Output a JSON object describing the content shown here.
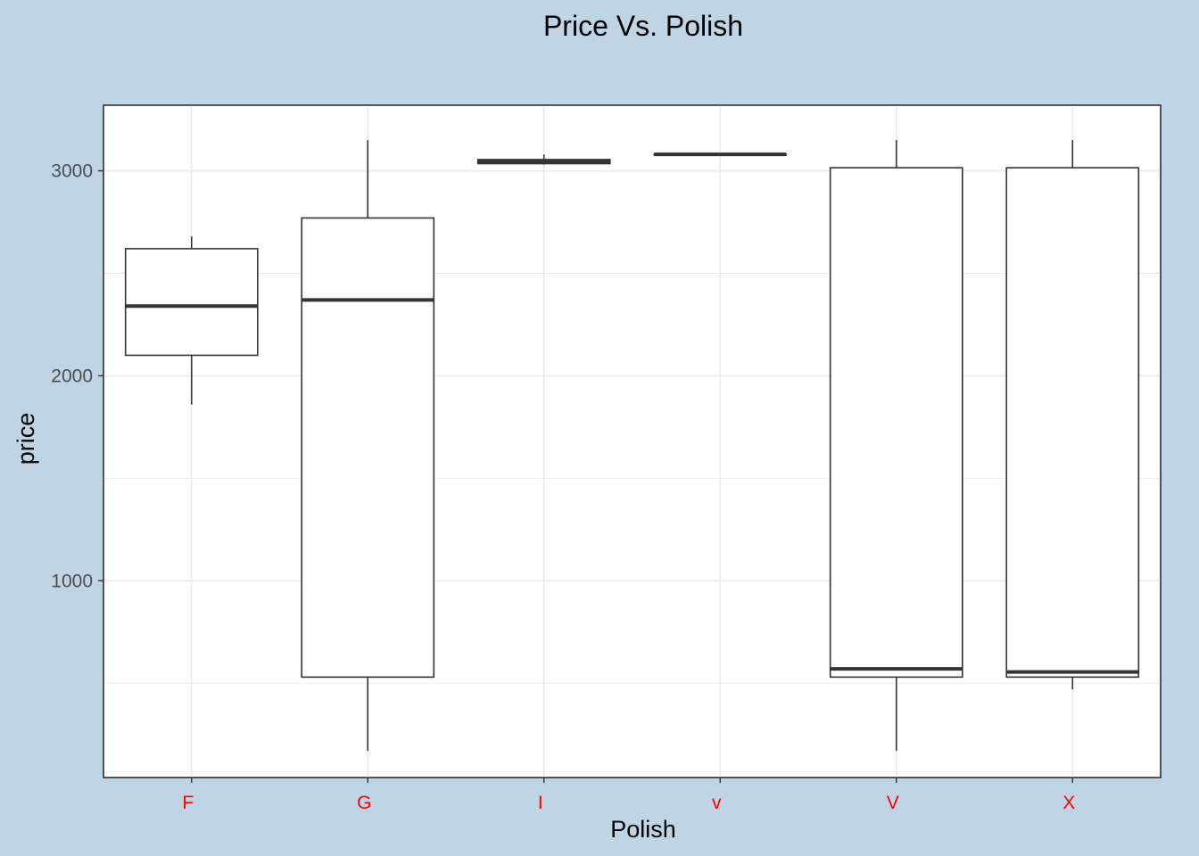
{
  "chart_data": {
    "type": "boxplot",
    "title": "Price Vs. Polish",
    "xlabel": "Polish",
    "ylabel": "price",
    "categories": [
      "F",
      "G",
      "I",
      "v",
      "V",
      "X"
    ],
    "ylim": [
      40,
      3320
    ],
    "yticks": [
      1000,
      2000,
      3000
    ],
    "ytick_labels": [
      "1000",
      "2000",
      "3000"
    ],
    "grid": true,
    "legend": "none",
    "boxes": [
      {
        "category": "F",
        "whisker_low": 1860,
        "q1": 2100,
        "median": 2340,
        "q3": 2620,
        "whisker_high": 2680
      },
      {
        "category": "G",
        "whisker_low": 170,
        "q1": 530,
        "median": 2370,
        "q3": 2770,
        "whisker_high": 3150
      },
      {
        "category": "I",
        "whisker_low": 3030,
        "q1": 3035,
        "median": 3045,
        "q3": 3055,
        "whisker_high": 3080
      },
      {
        "category": "v",
        "whisker_low": 3080,
        "q1": 3080,
        "median": 3080,
        "q3": 3080,
        "whisker_high": 3080
      },
      {
        "category": "V",
        "whisker_low": 170,
        "q1": 530,
        "median": 570,
        "q3": 3015,
        "whisker_high": 3150
      },
      {
        "category": "X",
        "whisker_low": 470,
        "q1": 530,
        "median": 555,
        "q3": 3015,
        "whisker_high": 3150
      }
    ],
    "colors": {
      "panel_background": "#ffffff",
      "plot_background": "#bfd5e5",
      "grid": "#ebebeb",
      "box_line": "#333333",
      "x_tick_labels": "#ff0000"
    }
  }
}
